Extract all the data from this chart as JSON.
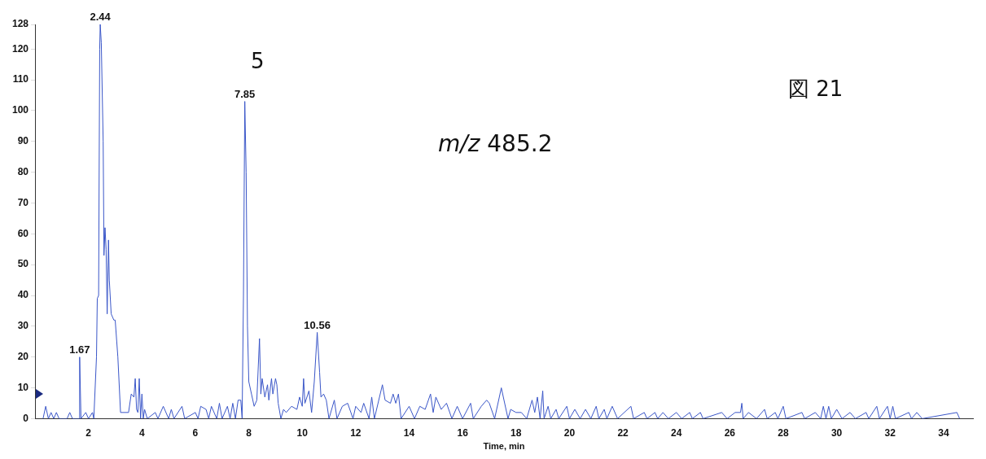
{
  "chart_data": {
    "type": "line",
    "xlabel": "Time, min",
    "annotations": [
      "5",
      "m/z 485.2",
      "図 21",
      {
        "text": "2.44",
        "x": 2.44,
        "y": 128
      },
      {
        "text": "7.85",
        "x": 7.85,
        "y": 103
      },
      {
        "text": "10.56",
        "x": 10.56,
        "y": 28
      },
      {
        "text": "1.67",
        "x": 1.67,
        "y": 20
      }
    ],
    "xlim": [
      0,
      35.1
    ],
    "xticks": [
      2,
      4,
      6,
      8,
      10,
      12,
      14,
      16,
      18,
      20,
      22,
      24,
      26,
      28,
      30,
      32,
      34
    ],
    "ylim": [
      0,
      128
    ],
    "yticks": [
      0,
      10,
      20,
      30,
      40,
      50,
      60,
      70,
      80,
      90,
      100,
      110,
      120,
      128
    ],
    "grid": false,
    "legend": false,
    "marker": "none",
    "line_style": "solid",
    "series": [
      {
        "color": "#3a56c8",
        "x": [
          0.3,
          0.4,
          0.5,
          0.6,
          0.7,
          0.8,
          0.9,
          1.2,
          1.3,
          1.4,
          1.65,
          1.67,
          1.72,
          1.9,
          2.0,
          2.15,
          2.2,
          2.3,
          2.33,
          2.38,
          2.42,
          2.44,
          2.48,
          2.55,
          2.58,
          2.62,
          2.66,
          2.7,
          2.75,
          2.78,
          2.85,
          2.95,
          3.0,
          3.1,
          3.2,
          3.5,
          3.6,
          3.7,
          3.75,
          3.8,
          3.85,
          3.9,
          3.95,
          4.0,
          4.05,
          4.1,
          4.2,
          4.5,
          4.6,
          4.8,
          5.0,
          5.1,
          5.2,
          5.5,
          5.6,
          6.0,
          6.1,
          6.2,
          6.4,
          6.5,
          6.6,
          6.8,
          6.9,
          7.0,
          7.2,
          7.3,
          7.4,
          7.5,
          7.6,
          7.7,
          7.75,
          7.8,
          7.85,
          7.9,
          7.95,
          8.0,
          8.1,
          8.2,
          8.3,
          8.4,
          8.45,
          8.5,
          8.6,
          8.7,
          8.75,
          8.85,
          8.9,
          9.0,
          9.05,
          9.1,
          9.2,
          9.3,
          9.4,
          9.6,
          9.8,
          9.9,
          10.0,
          10.05,
          10.1,
          10.25,
          10.35,
          10.45,
          10.56,
          10.65,
          10.7,
          10.8,
          10.9,
          11.0,
          11.2,
          11.3,
          11.5,
          11.7,
          11.9,
          12.0,
          12.2,
          12.3,
          12.5,
          12.6,
          12.7,
          13.0,
          13.1,
          13.3,
          13.4,
          13.5,
          13.6,
          13.7,
          14.0,
          14.2,
          14.4,
          14.6,
          14.8,
          14.9,
          15.0,
          15.2,
          15.4,
          15.6,
          15.8,
          16.0,
          16.3,
          16.4,
          16.7,
          16.9,
          17.0,
          17.2,
          17.45,
          17.7,
          17.8,
          18.0,
          18.2,
          18.4,
          18.6,
          18.7,
          18.8,
          18.9,
          19.0,
          19.05,
          19.2,
          19.3,
          19.5,
          19.6,
          19.9,
          20.0,
          20.2,
          20.4,
          20.6,
          20.8,
          21.0,
          21.1,
          21.3,
          21.4,
          21.6,
          21.8,
          22.3,
          22.4,
          22.8,
          22.9,
          23.2,
          23.3,
          23.5,
          23.7,
          24.0,
          24.2,
          24.5,
          24.6,
          24.9,
          25.0,
          25.7,
          25.9,
          26.2,
          26.4,
          26.45,
          26.5,
          26.7,
          27.0,
          27.3,
          27.4,
          27.7,
          27.8,
          28.0,
          28.1,
          28.7,
          28.8,
          29.2,
          29.4,
          29.5,
          29.6,
          29.7,
          29.8,
          30.0,
          30.2,
          30.5,
          30.7,
          31.1,
          31.2,
          31.5,
          31.6,
          31.9,
          32.0,
          32.1,
          32.2,
          32.7,
          32.8,
          33.0,
          33.2,
          34.5,
          34.6
        ],
        "values": [
          0,
          4,
          0,
          2,
          0,
          2,
          0,
          0,
          2,
          0,
          0,
          20,
          0,
          2,
          0,
          2,
          0,
          20,
          39,
          40,
          120,
          128,
          122,
          90,
          53,
          62,
          55,
          34,
          58,
          45,
          34,
          32,
          32,
          20,
          2,
          2,
          8,
          7,
          13,
          3,
          2,
          13,
          0,
          8,
          0,
          3,
          0,
          2,
          0,
          4,
          0,
          3,
          0,
          4,
          0,
          2,
          0,
          4,
          3,
          0,
          4,
          0,
          5,
          0,
          4,
          0,
          5,
          0,
          6,
          6,
          0,
          40,
          103,
          80,
          30,
          12,
          8,
          4,
          6,
          26,
          8,
          13,
          7,
          11,
          6,
          13,
          8,
          13,
          11,
          5,
          0,
          3,
          2,
          4,
          3,
          7,
          4,
          13,
          5,
          9,
          2,
          12,
          28,
          15,
          7,
          8,
          6,
          0,
          6,
          0,
          4,
          5,
          0,
          4,
          2,
          5,
          0,
          7,
          0,
          11,
          6,
          5,
          8,
          5,
          8,
          0,
          4,
          0,
          4,
          3,
          8,
          2,
          7,
          3,
          5,
          0,
          4,
          0,
          5,
          0,
          4,
          6,
          5,
          0,
          10,
          0,
          3,
          2,
          2,
          0,
          6,
          2,
          7,
          0,
          9,
          0,
          4,
          0,
          3,
          0,
          4,
          0,
          3,
          0,
          3,
          0,
          4,
          0,
          3,
          0,
          4,
          0,
          4,
          0,
          2,
          0,
          2,
          0,
          2,
          0,
          2,
          0,
          2,
          0,
          2,
          0,
          2,
          0,
          2,
          2,
          5,
          0,
          2,
          0,
          3,
          0,
          2,
          0,
          4,
          0,
          2,
          0,
          2,
          0,
          4,
          0,
          4,
          0,
          3,
          0,
          2,
          0,
          2,
          0,
          4,
          0,
          4,
          0,
          4,
          0,
          2,
          0,
          2,
          0,
          2,
          0
        ]
      }
    ]
  }
}
